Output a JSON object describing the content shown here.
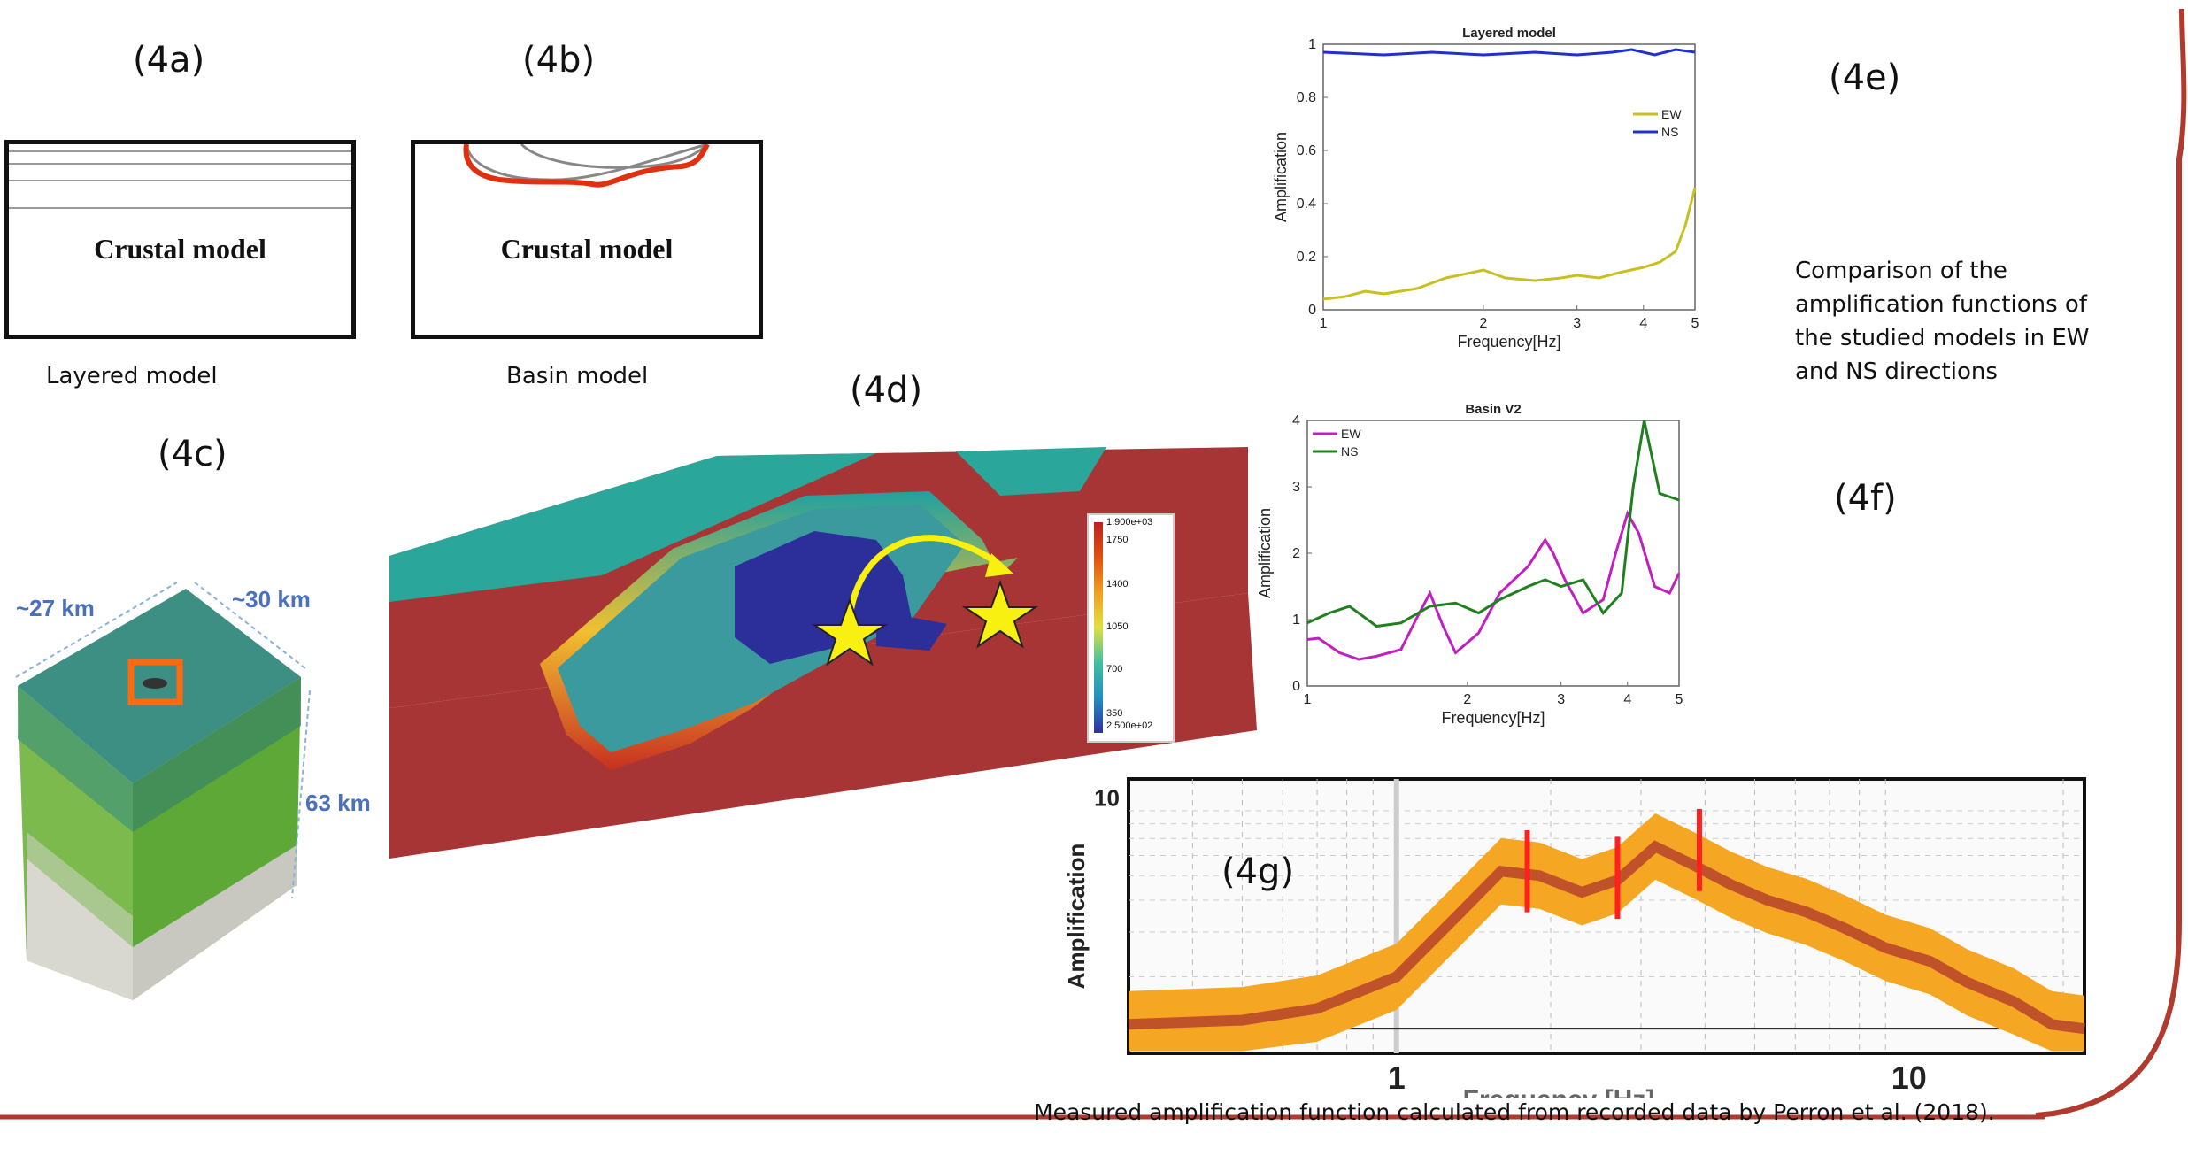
{
  "panels": {
    "a": "(4a)",
    "b": "(4b)",
    "c": "(4c)",
    "d": "(4d)",
    "e": "(4e)",
    "f": "(4f)",
    "g": "(4g)"
  },
  "models": {
    "crust_label": "Crustal model",
    "layered_caption": "Layered model",
    "basin_caption": "Basin model"
  },
  "block": {
    "width_label": "~27 km",
    "length_label": "~30 km",
    "depth_label": "63 km"
  },
  "colorbar": {
    "max_label": "1.900e+03",
    "ticks": [
      "1750",
      "1400",
      "1050",
      "700",
      "350"
    ],
    "min_label": "2.500e+02"
  },
  "description": "Comparison of the amplification functions of the studied models in EW and NS directions",
  "footer": "Measured amplification function calculated from recorded data by Perron et al. (2018).",
  "colors": {
    "accent": "#b03a2e",
    "ew_layered": "#c8c020",
    "ns_layered": "#1f2fd0",
    "ew_basin": "#c020c0",
    "ns_basin": "#208020",
    "measured_band": "#f5a623",
    "measured_line": "#c0522a"
  },
  "chart_data": [
    {
      "type": "line",
      "title": "Layered model",
      "xlabel": "Frequency[Hz]",
      "ylabel": "Amplification",
      "xscale": "log",
      "xlim": [
        1,
        5
      ],
      "ylim": [
        0,
        1
      ],
      "xticks": [
        1,
        2,
        3,
        4,
        5
      ],
      "yticks": [
        0,
        0.2,
        0.4,
        0.6,
        0.8,
        1
      ],
      "legend": "right",
      "series": [
        {
          "name": "EW",
          "x": [
            1,
            1.1,
            1.2,
            1.3,
            1.5,
            1.7,
            1.9,
            2.0,
            2.2,
            2.5,
            2.8,
            3.0,
            3.3,
            3.6,
            4.0,
            4.3,
            4.6,
            4.8,
            5.0
          ],
          "y": [
            0.04,
            0.05,
            0.07,
            0.06,
            0.08,
            0.12,
            0.14,
            0.15,
            0.12,
            0.11,
            0.12,
            0.13,
            0.12,
            0.14,
            0.16,
            0.18,
            0.22,
            0.32,
            0.46
          ]
        },
        {
          "name": "NS",
          "x": [
            1,
            1.3,
            1.6,
            2.0,
            2.5,
            3.0,
            3.5,
            3.8,
            4.2,
            4.6,
            5.0
          ],
          "y": [
            0.97,
            0.96,
            0.97,
            0.96,
            0.97,
            0.96,
            0.97,
            0.98,
            0.96,
            0.98,
            0.97
          ]
        }
      ]
    },
    {
      "type": "line",
      "title": "Basin V2",
      "xlabel": "Frequency[Hz]",
      "ylabel": "Amplification",
      "xscale": "log",
      "xlim": [
        1,
        5
      ],
      "ylim": [
        0,
        4
      ],
      "xticks": [
        1,
        2,
        3,
        4,
        5
      ],
      "yticks": [
        0,
        1,
        2,
        3,
        4
      ],
      "legend": "top-left",
      "series": [
        {
          "name": "EW",
          "x": [
            1,
            1.05,
            1.15,
            1.25,
            1.35,
            1.5,
            1.6,
            1.7,
            1.8,
            1.9,
            2.1,
            2.3,
            2.6,
            2.8,
            2.9,
            3.05,
            3.3,
            3.6,
            3.8,
            4.0,
            4.2,
            4.5,
            4.8,
            5.0
          ],
          "y": [
            0.7,
            0.72,
            0.5,
            0.4,
            0.45,
            0.55,
            1.0,
            1.4,
            0.9,
            0.5,
            0.8,
            1.4,
            1.8,
            2.2,
            2.0,
            1.6,
            1.1,
            1.3,
            2.0,
            2.6,
            2.3,
            1.5,
            1.4,
            1.7
          ]
        },
        {
          "name": "NS",
          "x": [
            1,
            1.1,
            1.2,
            1.35,
            1.5,
            1.7,
            1.9,
            2.1,
            2.3,
            2.6,
            2.8,
            3.0,
            3.3,
            3.6,
            3.9,
            4.1,
            4.3,
            4.6,
            5.0
          ],
          "y": [
            0.95,
            1.1,
            1.2,
            0.9,
            0.95,
            1.2,
            1.25,
            1.1,
            1.3,
            1.5,
            1.6,
            1.5,
            1.6,
            1.1,
            1.4,
            3.0,
            4.0,
            2.9,
            2.8
          ]
        }
      ]
    },
    {
      "type": "line",
      "title": "",
      "xlabel": "Frequency [Hz]",
      "ylabel": "Amplification",
      "xscale": "log",
      "yscale": "log",
      "xticks": [
        1,
        10
      ],
      "yticks": [
        10
      ],
      "series": [
        {
          "name": "",
          "x": [
            0.3,
            0.5,
            0.7,
            1.0,
            1.3,
            1.6,
            1.9,
            2.3,
            2.7,
            3.2,
            3.8,
            4.5,
            5.3,
            6.3,
            7.5,
            9.0,
            11,
            13,
            16,
            19,
            22
          ],
          "y": [
            1.3,
            1.35,
            1.5,
            2.0,
            3.4,
            5.2,
            5.0,
            4.3,
            4.8,
            6.5,
            5.5,
            4.6,
            4.0,
            3.6,
            3.1,
            2.6,
            2.3,
            1.9,
            1.6,
            1.3,
            1.25
          ]
        }
      ],
      "annotations": [
        "red markers near 1.8, 2.7 and 3.9 Hz"
      ]
    }
  ]
}
